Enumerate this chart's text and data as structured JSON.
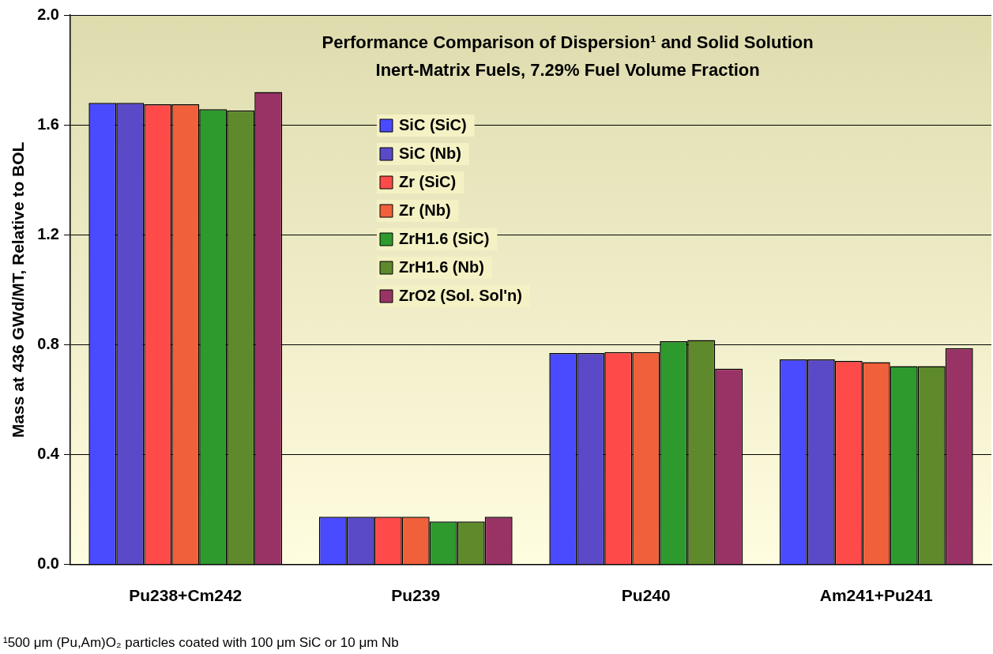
{
  "chart_data": {
    "type": "bar",
    "title": "Performance Comparison of Dispersion¹ and Solid Solution\nInert-Matrix Fuels, 7.29% Fuel Volume Fraction",
    "ylabel": "Mass at 436 GWd/MT, Relative to BOL",
    "categories": [
      "Pu238+Cm242",
      "Pu239",
      "Pu240",
      "Am241+Pu241"
    ],
    "series": [
      {
        "name": "SiC (SiC)",
        "color": "#4a4aff",
        "values": [
          1.68,
          0.174,
          0.77,
          0.747
        ]
      },
      {
        "name": "SiC (Nb)",
        "color": "#5a4ac8",
        "values": [
          1.68,
          0.174,
          0.77,
          0.747
        ]
      },
      {
        "name": "Zr (SiC)",
        "color": "#ff4a4a",
        "values": [
          1.675,
          0.174,
          0.773,
          0.741
        ]
      },
      {
        "name": "Zr (Nb)",
        "color": "#f0603a",
        "values": [
          1.675,
          0.174,
          0.773,
          0.737
        ]
      },
      {
        "name": "ZrH1.6 (SiC)",
        "color": "#2e9a2e",
        "values": [
          1.657,
          0.157,
          0.813,
          0.722
        ]
      },
      {
        "name": "ZrH1.6 (Nb)",
        "color": "#5f8a2c",
        "values": [
          1.653,
          0.157,
          0.817,
          0.722
        ]
      },
      {
        "name": "ZrO2 (Sol. Sol'n)",
        "color": "#993366",
        "values": [
          1.72,
          0.174,
          0.713,
          0.788
        ]
      }
    ],
    "ylim": [
      0,
      2
    ],
    "yticks": [
      {
        "value": 0,
        "label": "0.0"
      },
      {
        "value": 0.4,
        "label": "0.4"
      },
      {
        "value": 0.8,
        "label": "0.8"
      },
      {
        "value": 1.2,
        "label": "1.2"
      },
      {
        "value": 1.6,
        "label": "1.6"
      },
      {
        "value": 2,
        "label": "2.0"
      }
    ],
    "grid": "y",
    "legend": "top",
    "annotations": [
      "¹500 μm (Pu,Am)O₂ particles coated with 100 μm SiC or 10 μm Nb"
    ]
  }
}
